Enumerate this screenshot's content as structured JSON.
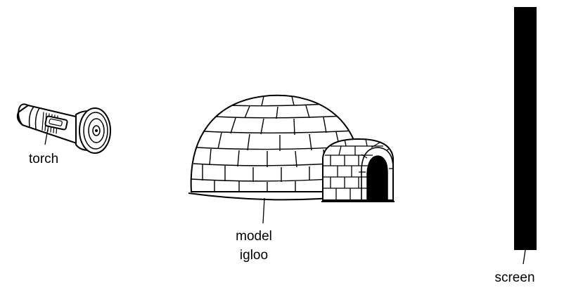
{
  "labels": {
    "torch": "torch",
    "model_igloo_line1": "model",
    "model_igloo_line2": "igloo",
    "screen": "screen"
  },
  "colors": {
    "ink": "#000000",
    "background": "#ffffff"
  }
}
